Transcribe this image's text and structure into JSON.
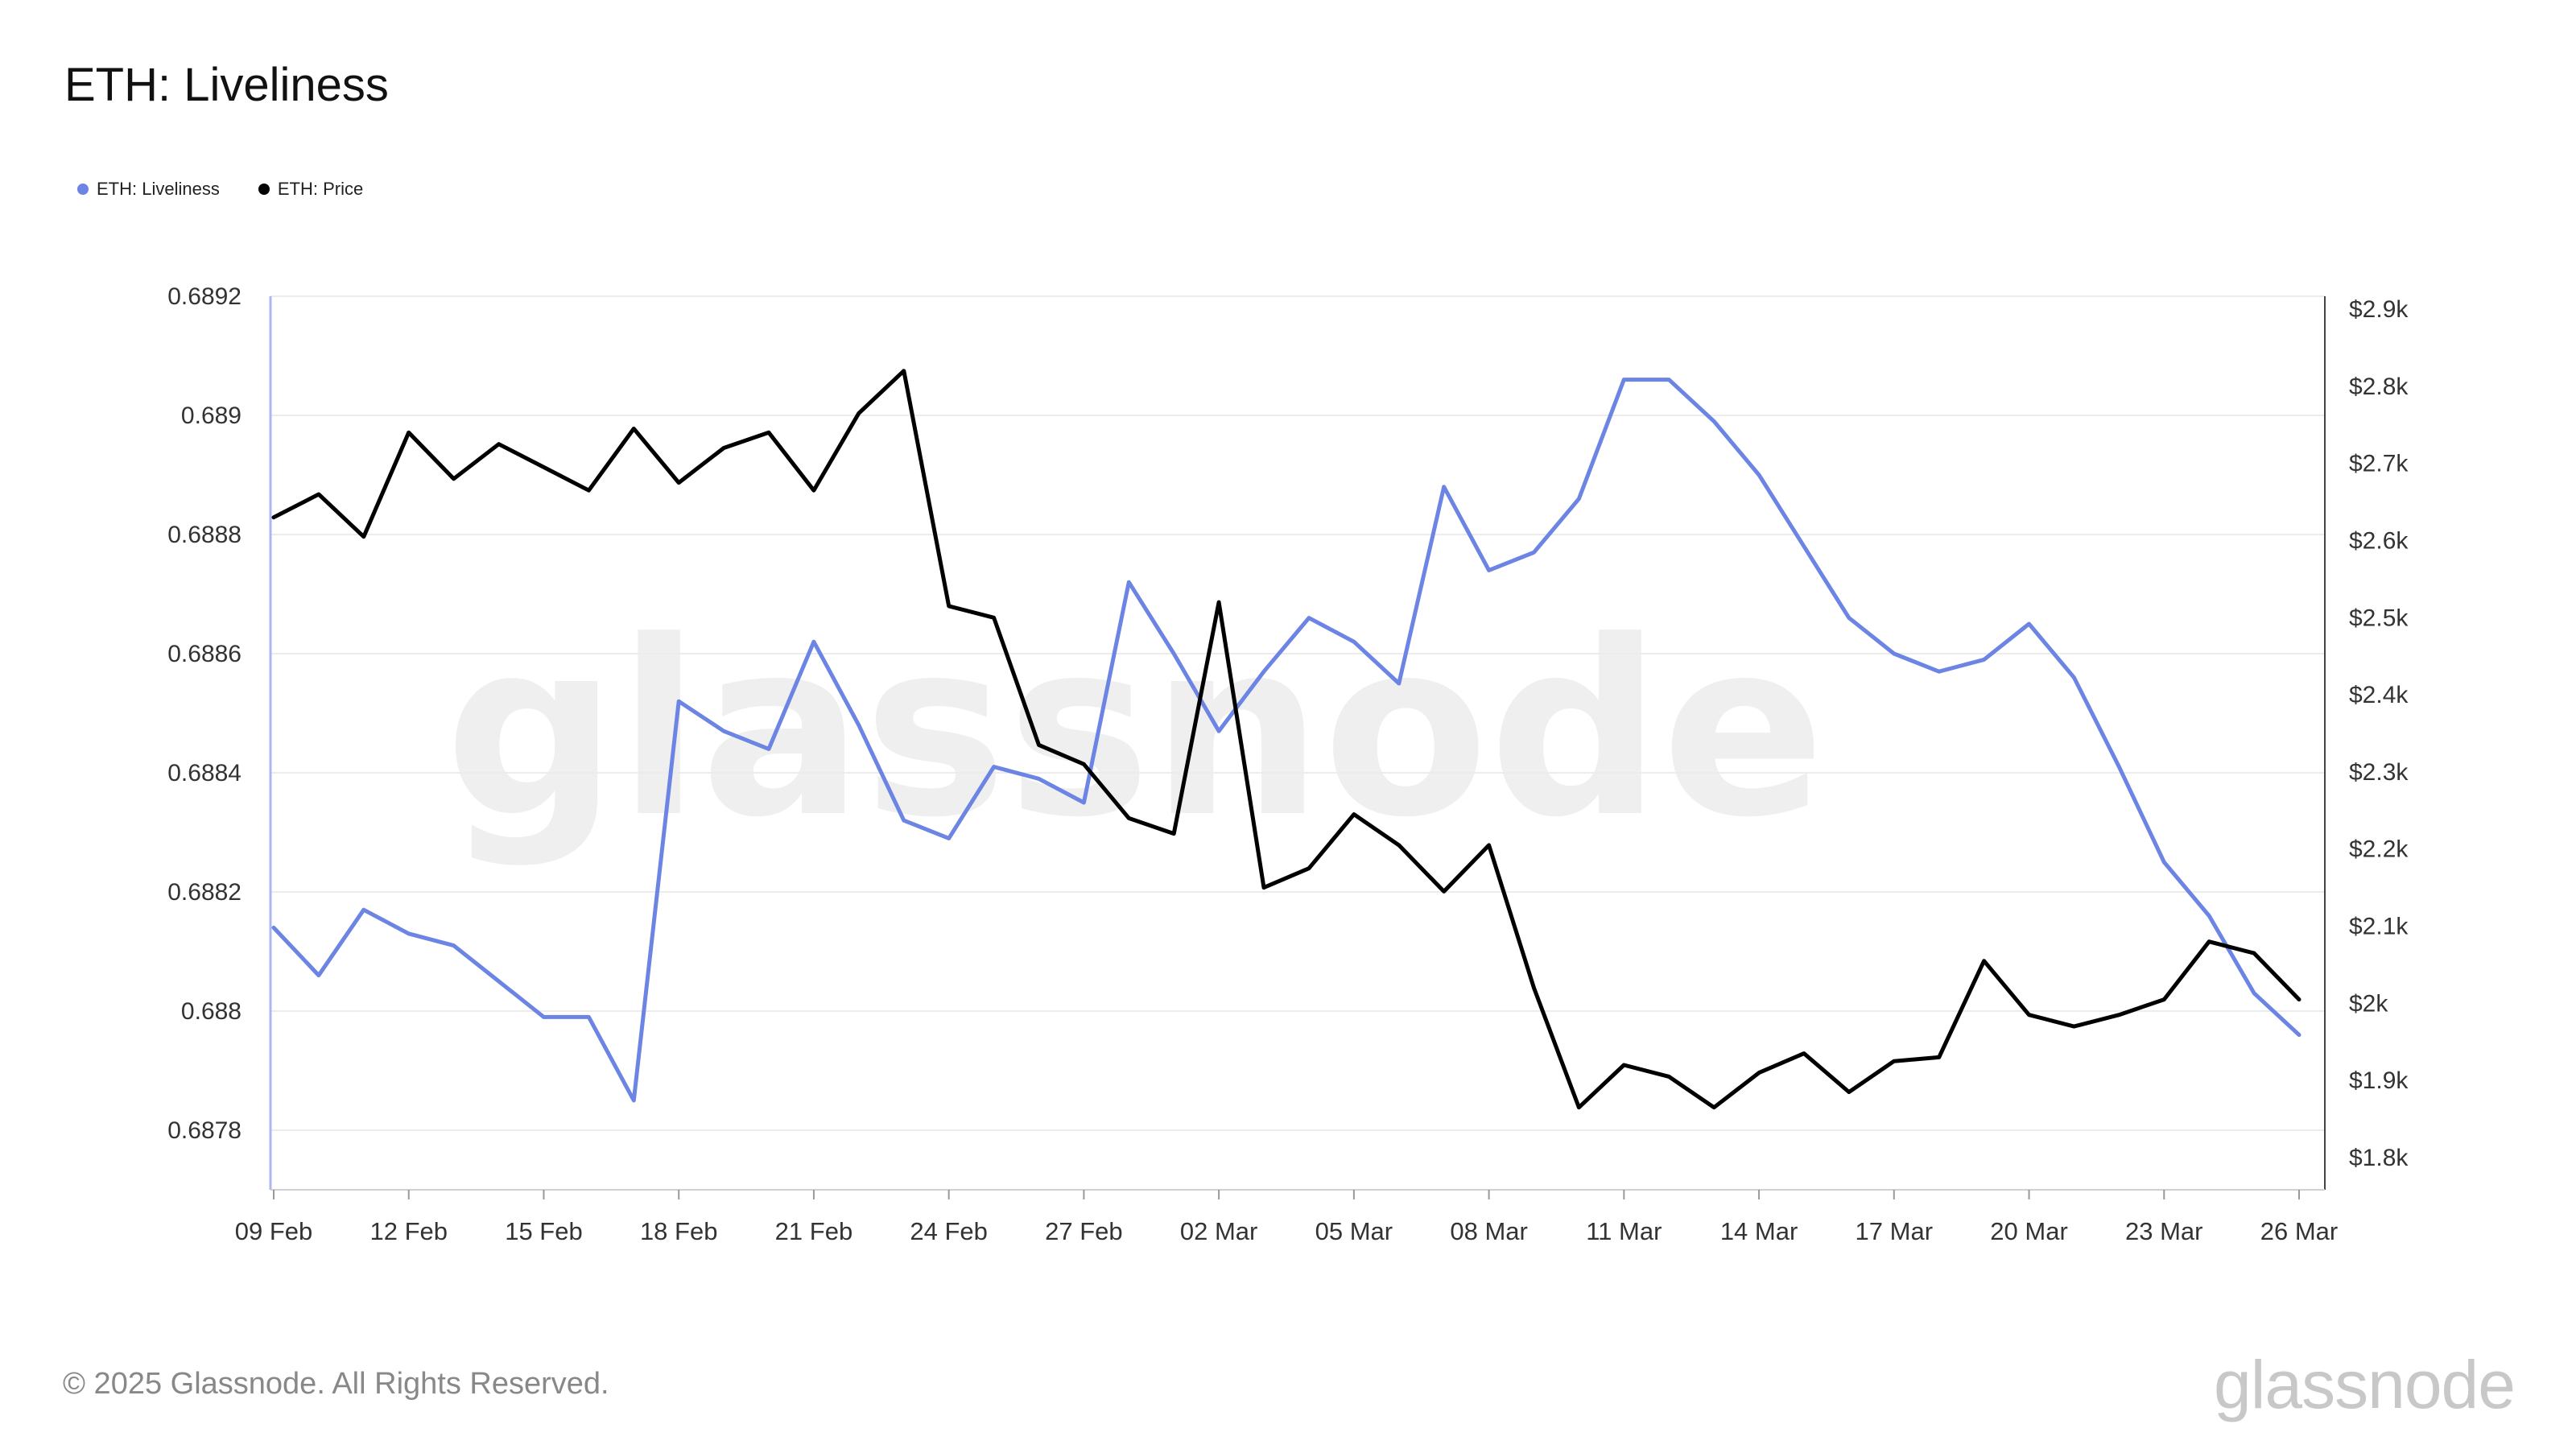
{
  "header": {
    "title": "ETH: Liveliness"
  },
  "legend": [
    {
      "label": "ETH: Liveliness",
      "color": "#6c84e3"
    },
    {
      "label": "ETH: Price",
      "color": "#000000"
    }
  ],
  "footer": {
    "copyright": "© 2025 Glassnode. All Rights Reserved.",
    "logo": "glassnode"
  },
  "watermark": "glassnode",
  "chart_data": {
    "type": "line",
    "title": "ETH: Liveliness",
    "x": [
      "09 Feb",
      "10 Feb",
      "11 Feb",
      "12 Feb",
      "13 Feb",
      "14 Feb",
      "15 Feb",
      "16 Feb",
      "17 Feb",
      "18 Feb",
      "19 Feb",
      "20 Feb",
      "21 Feb",
      "22 Feb",
      "23 Feb",
      "24 Feb",
      "25 Feb",
      "26 Feb",
      "27 Feb",
      "28 Feb",
      "01 Mar",
      "02 Mar",
      "03 Mar",
      "04 Mar",
      "05 Mar",
      "06 Mar",
      "07 Mar",
      "08 Mar",
      "09 Mar",
      "10 Mar",
      "11 Mar",
      "12 Mar",
      "13 Mar",
      "14 Mar",
      "15 Mar",
      "16 Mar",
      "17 Mar",
      "18 Mar",
      "19 Mar",
      "20 Mar",
      "21 Mar",
      "22 Mar",
      "23 Mar",
      "24 Mar",
      "25 Mar",
      "26 Mar"
    ],
    "x_tick_labels": [
      "09 Feb",
      "12 Feb",
      "15 Feb",
      "18 Feb",
      "21 Feb",
      "24 Feb",
      "27 Feb",
      "02 Mar",
      "05 Mar",
      "08 Mar",
      "11 Mar",
      "14 Mar",
      "17 Mar",
      "20 Mar",
      "23 Mar",
      "26 Mar"
    ],
    "y_left": {
      "ticks": [
        "0.6878",
        "0.688",
        "0.6882",
        "0.6884",
        "0.6886",
        "0.6888",
        "0.689",
        "0.6892"
      ],
      "range": [
        0.6877,
        0.6892
      ]
    },
    "y_right": {
      "ticks": [
        "$1.8k",
        "$1.9k",
        "$2k",
        "$2.1k",
        "$2.2k",
        "$2.3k",
        "$2.4k",
        "$2.5k",
        "$2.6k",
        "$2.7k",
        "$2.8k",
        "$2.9k"
      ],
      "range": [
        1800,
        2900
      ]
    },
    "series": [
      {
        "name": "ETH: Liveliness",
        "axis": "left",
        "color": "#6c84e3",
        "values": [
          0.68814,
          0.68806,
          0.68817,
          0.68813,
          0.68811,
          0.68805,
          0.68799,
          0.68799,
          0.68785,
          0.68852,
          0.68847,
          0.68844,
          0.68862,
          0.68848,
          0.68832,
          0.68829,
          0.68841,
          0.68839,
          0.68835,
          0.68872,
          0.6886,
          0.68847,
          0.68857,
          0.68866,
          0.68862,
          0.68855,
          0.68888,
          0.68874,
          0.68877,
          0.68886,
          0.68906,
          0.68906,
          0.68899,
          0.6889,
          0.68878,
          0.68866,
          0.6886,
          0.68857,
          0.68859,
          0.68865,
          0.68856,
          0.68841,
          0.68825,
          0.68816,
          0.68803,
          0.68796
        ]
      },
      {
        "name": "ETH: Price",
        "axis": "right",
        "color": "#000000",
        "values": [
          2630,
          2660,
          2605,
          2740,
          2680,
          2725,
          2695,
          2665,
          2745,
          2675,
          2720,
          2740,
          2665,
          2765,
          2820,
          2515,
          2500,
          2335,
          2310,
          2240,
          2220,
          2520,
          2150,
          2175,
          2245,
          2205,
          2145,
          2205,
          2020,
          1865,
          1920,
          1905,
          1865,
          1910,
          1935,
          1885,
          1925,
          1930,
          2055,
          1985,
          1970,
          1985,
          2005,
          2080,
          2065,
          2005
        ]
      }
    ]
  }
}
